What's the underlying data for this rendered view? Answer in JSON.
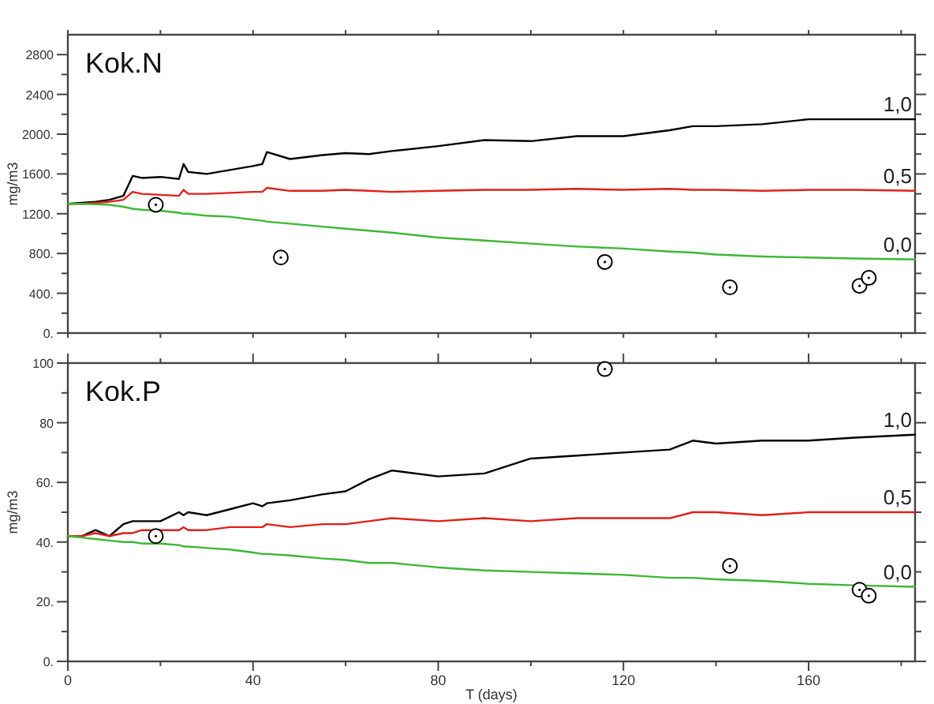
{
  "chart_data": [
    {
      "type": "line",
      "title": "Kok.N",
      "ylabel": "mg/m3",
      "tick_labels": "y",
      "x": [
        0,
        3,
        6,
        9,
        12,
        14,
        16,
        20,
        24,
        25,
        26,
        30,
        35,
        40,
        42,
        43,
        48,
        55,
        60,
        65,
        70,
        80,
        90,
        100,
        110,
        120,
        130,
        135,
        140,
        150,
        160,
        170,
        183
      ],
      "xlim": [
        0,
        183
      ],
      "xticks": [
        {
          "value": 0,
          "label": null
        },
        {
          "value": 20,
          "label": null
        },
        {
          "value": 40,
          "label": null
        },
        {
          "value": 60,
          "label": null
        },
        {
          "value": 80,
          "label": null
        },
        {
          "value": 100,
          "label": null
        },
        {
          "value": 120,
          "label": null
        },
        {
          "value": 140,
          "label": null
        },
        {
          "value": 160,
          "label": null
        },
        {
          "value": 180,
          "label": null
        }
      ],
      "ylim": [
        0,
        3000
      ],
      "yticks": [
        {
          "value": 0,
          "label": "0."
        },
        {
          "value": 200,
          "label": null
        },
        {
          "value": 400,
          "label": "400."
        },
        {
          "value": 600,
          "label": null
        },
        {
          "value": 800,
          "label": "800."
        },
        {
          "value": 1000,
          "label": null
        },
        {
          "value": 1200,
          "label": "1200."
        },
        {
          "value": 1400,
          "label": null
        },
        {
          "value": 1600,
          "label": "1600."
        },
        {
          "value": 1800,
          "label": null
        },
        {
          "value": 2000,
          "label": "2000."
        },
        {
          "value": 2200,
          "label": null
        },
        {
          "value": 2400,
          "label": "2400"
        },
        {
          "value": 2600,
          "label": null
        },
        {
          "value": 2800,
          "label": "2800"
        }
      ],
      "series": [
        {
          "name": "1,0",
          "color": "#000000",
          "values": [
            1300,
            1310,
            1320,
            1340,
            1380,
            1580,
            1560,
            1570,
            1550,
            1700,
            1620,
            1600,
            1640,
            1680,
            1700,
            1820,
            1750,
            1790,
            1810,
            1800,
            1830,
            1880,
            1940,
            1930,
            1980,
            1980,
            2040,
            2080,
            2080,
            2100,
            2150,
            2150,
            2150
          ]
        },
        {
          "name": "0,5",
          "color": "#e0201b",
          "values": [
            1300,
            1300,
            1310,
            1320,
            1340,
            1420,
            1400,
            1390,
            1380,
            1440,
            1400,
            1400,
            1410,
            1420,
            1420,
            1460,
            1430,
            1430,
            1440,
            1430,
            1420,
            1430,
            1440,
            1440,
            1450,
            1440,
            1450,
            1440,
            1440,
            1430,
            1440,
            1440,
            1430
          ]
        },
        {
          "name": "0,0",
          "color": "#3cb832",
          "values": [
            1300,
            1300,
            1295,
            1290,
            1270,
            1250,
            1240,
            1230,
            1210,
            1200,
            1200,
            1180,
            1170,
            1140,
            1130,
            1120,
            1100,
            1070,
            1050,
            1030,
            1010,
            960,
            930,
            900,
            870,
            850,
            820,
            810,
            790,
            770,
            760,
            750,
            740
          ]
        },
        {
          "type": "scatter",
          "marker": "circle",
          "color": "#000000",
          "x": [
            19,
            46,
            116,
            143,
            171,
            173
          ],
          "values": [
            1290,
            760,
            715,
            460,
            475,
            555
          ]
        }
      ]
    },
    {
      "type": "line",
      "title": "Kok.P",
      "ylabel": "mg/m3",
      "xlabel": "T (days)",
      "x": [
        0,
        3,
        6,
        9,
        12,
        14,
        16,
        20,
        24,
        25,
        26,
        30,
        35,
        40,
        42,
        43,
        48,
        55,
        60,
        65,
        70,
        80,
        90,
        100,
        110,
        120,
        130,
        135,
        140,
        150,
        160,
        170,
        183
      ],
      "xlim": [
        0,
        183
      ],
      "xticks": [
        0,
        {
          "value": 20,
          "label": null
        },
        40,
        {
          "value": 60,
          "label": null
        },
        80,
        {
          "value": 100,
          "label": null
        },
        120,
        {
          "value": 140,
          "label": null
        },
        160,
        {
          "value": 180,
          "label": null
        }
      ],
      "ylim": [
        0,
        100
      ],
      "yticks": [
        {
          "value": 0,
          "label": "0."
        },
        {
          "value": 10,
          "label": null
        },
        {
          "value": 20,
          "label": "20."
        },
        {
          "value": 30,
          "label": null
        },
        {
          "value": 40,
          "label": "40."
        },
        {
          "value": 50,
          "label": null
        },
        {
          "value": 60,
          "label": "60."
        },
        {
          "value": 70,
          "label": null
        },
        {
          "value": 80,
          "label": "80"
        },
        {
          "value": 90,
          "label": null
        },
        100
      ],
      "series": [
        {
          "name": "1,0",
          "color": "#000000",
          "values": [
            42,
            42,
            44,
            42,
            46,
            47,
            47,
            47,
            50,
            49,
            50,
            49,
            51,
            53,
            52,
            53,
            54,
            56,
            57,
            61,
            64,
            62,
            63,
            68,
            69,
            70,
            71,
            74,
            73,
            74,
            74,
            75,
            76
          ]
        },
        {
          "name": "0,5",
          "color": "#e0201b",
          "values": [
            42,
            42,
            43,
            42,
            43,
            43,
            44,
            44,
            44,
            45,
            44,
            44,
            45,
            45,
            45,
            46,
            45,
            46,
            46,
            47,
            48,
            47,
            48,
            47,
            48,
            48,
            48,
            50,
            50,
            49,
            50,
            50,
            50
          ]
        },
        {
          "name": "0,0",
          "color": "#3cb832",
          "values": [
            42,
            41.5,
            41,
            40.5,
            40,
            40,
            39.5,
            39.5,
            39,
            38.5,
            38.5,
            38,
            37.5,
            36.5,
            36,
            36,
            35.5,
            34.5,
            34,
            33,
            33,
            31.5,
            30.5,
            30,
            29.5,
            29,
            28,
            28,
            27.5,
            27,
            26,
            25.5,
            25
          ]
        },
        {
          "type": "scatter",
          "marker": "circle",
          "color": "#000000",
          "x": [
            19,
            116,
            143,
            171,
            173
          ],
          "values": [
            42,
            98,
            32,
            24,
            22
          ]
        }
      ]
    }
  ]
}
